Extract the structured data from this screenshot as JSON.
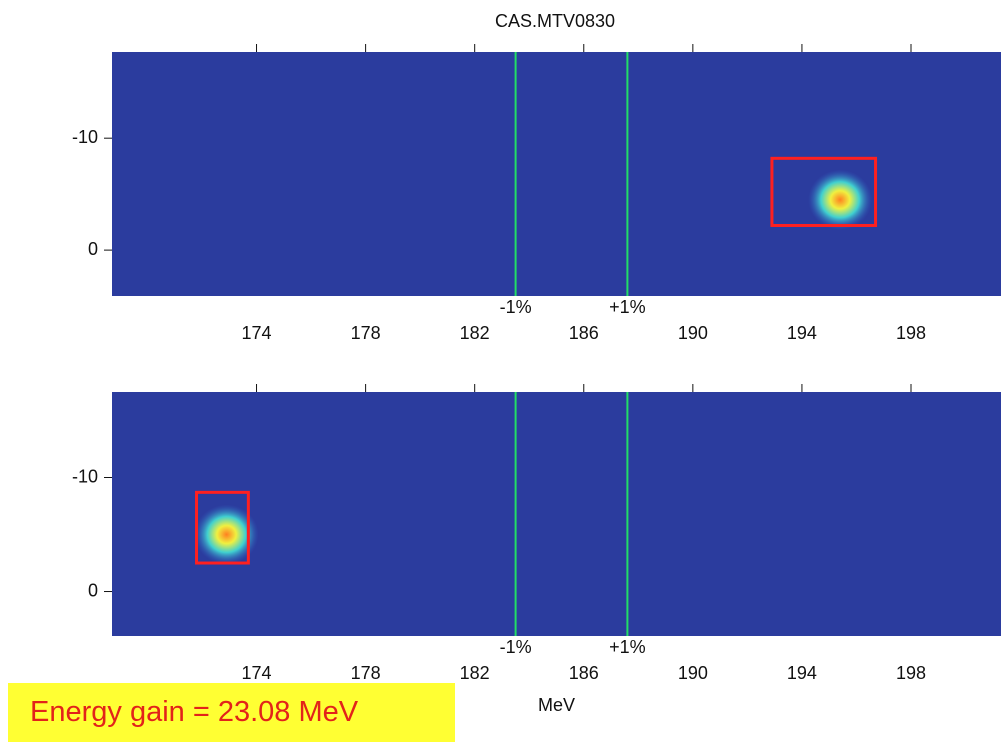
{
  "title": "CAS.MTV0830",
  "annotation": "Energy gain = 23.08 MeV",
  "chart_data": [
    {
      "type": "heatmap",
      "background": "#2b3c9e",
      "xlim": [
        168.7,
        201.3
      ],
      "ylim": [
        4.1,
        -17.7
      ],
      "xticks": [
        174,
        178,
        182,
        186,
        190,
        194,
        198
      ],
      "yticks": [
        -10,
        0
      ],
      "markers": [
        {
          "x": 183.5,
          "label": "-1%"
        },
        {
          "x": 187.6,
          "label": "+1%"
        }
      ],
      "marker_color": "#22dd66",
      "box": {
        "x": [
          192.9,
          196.7
        ],
        "y": [
          -8.2,
          -2.2
        ]
      },
      "box_color": "#ff2020",
      "spot": {
        "x": 195.4,
        "y": -4.5
      }
    },
    {
      "type": "heatmap",
      "background": "#2b3c9e",
      "xlim": [
        168.7,
        201.3
      ],
      "ylim": [
        3.9,
        -17.5
      ],
      "xticks": [
        174,
        178,
        182,
        186,
        190,
        194,
        198
      ],
      "yticks": [
        -10,
        0
      ],
      "xlabel": "MeV",
      "markers": [
        {
          "x": 183.5,
          "label": "-1%"
        },
        {
          "x": 187.6,
          "label": "+1%"
        }
      ],
      "marker_color": "#22dd66",
      "box": {
        "x": [
          171.8,
          173.7
        ],
        "y": [
          -8.7,
          -2.5
        ]
      },
      "box_color": "#ff2020",
      "spot": {
        "x": 172.9,
        "y": -5.0
      }
    }
  ]
}
